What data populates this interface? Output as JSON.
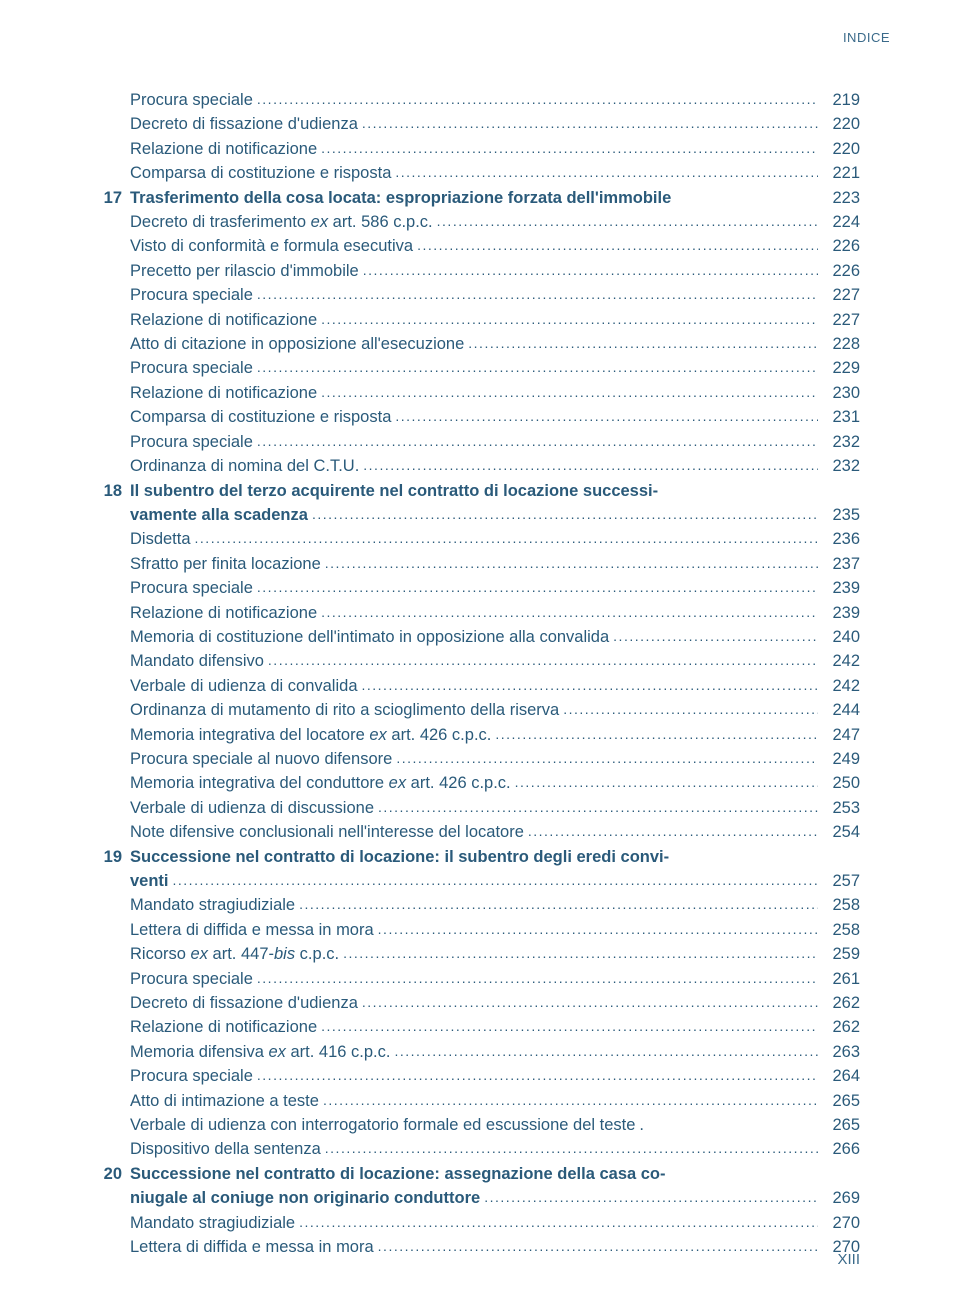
{
  "header": "INDICE",
  "footer": "XIII",
  "entries": [
    {
      "num": "",
      "label": "Procura speciale",
      "page": "219"
    },
    {
      "num": "",
      "label": "Decreto di fissazione d'udienza",
      "page": "220"
    },
    {
      "num": "",
      "label": "Relazione di notificazione",
      "page": "220"
    },
    {
      "num": "",
      "label": "Comparsa di costituzione e risposta",
      "page": "221"
    },
    {
      "num": "17",
      "bold": true,
      "label": "Trasferimento della cosa locata: espropriazione forzata dell'immobile",
      "page": "223",
      "noleader": true
    },
    {
      "num": "",
      "label_parts": [
        "Decreto di trasferimento ",
        {
          "ital": "ex"
        },
        " art. 586 c.p.c."
      ],
      "page": "224"
    },
    {
      "num": "",
      "label": "Visto di conformità e formula esecutiva",
      "page": "226"
    },
    {
      "num": "",
      "label": "Precetto per rilascio d'immobile",
      "page": "226"
    },
    {
      "num": "",
      "label": "Procura speciale",
      "page": "227"
    },
    {
      "num": "",
      "label": "Relazione di notificazione",
      "page": "227"
    },
    {
      "num": "",
      "label": "Atto di citazione in opposizione all'esecuzione",
      "page": "228"
    },
    {
      "num": "",
      "label": "Procura speciale",
      "page": "229"
    },
    {
      "num": "",
      "label": "Relazione di notificazione",
      "page": "230"
    },
    {
      "num": "",
      "label": "Comparsa di costituzione e risposta",
      "page": "231"
    },
    {
      "num": "",
      "label": "Procura speciale",
      "page": "232"
    },
    {
      "num": "",
      "label": "Ordinanza di nomina del C.T.U.",
      "page": "232"
    },
    {
      "num": "18",
      "bold": true,
      "label": "Il subentro del terzo acquirente nel contratto di locazione successi-",
      "nopage": true
    },
    {
      "num": "",
      "bold": true,
      "label": "vamente alla scadenza",
      "page": "235",
      "cont": true
    },
    {
      "num": "",
      "label": "Disdetta",
      "page": "236"
    },
    {
      "num": "",
      "label": "Sfratto per finita locazione",
      "page": "237"
    },
    {
      "num": "",
      "label": "Procura speciale",
      "page": "239"
    },
    {
      "num": "",
      "label": "Relazione di notificazione",
      "page": "239"
    },
    {
      "num": "",
      "label": "Memoria di costituzione dell'intimato in opposizione alla convalida",
      "page": "240"
    },
    {
      "num": "",
      "label": "Mandato difensivo",
      "page": "242"
    },
    {
      "num": "",
      "label": "Verbale di udienza di convalida",
      "page": "242"
    },
    {
      "num": "",
      "label": "Ordinanza di mutamento di rito a scioglimento della riserva",
      "page": "244"
    },
    {
      "num": "",
      "label_parts": [
        "Memoria integrativa del locatore ",
        {
          "ital": "ex"
        },
        " art. 426 c.p.c."
      ],
      "page": "247"
    },
    {
      "num": "",
      "label": "Procura speciale al nuovo difensore",
      "page": "249"
    },
    {
      "num": "",
      "label_parts": [
        "Memoria integrativa del conduttore ",
        {
          "ital": "ex"
        },
        " art. 426 c.p.c."
      ],
      "page": "250"
    },
    {
      "num": "",
      "label": "Verbale di udienza di discussione",
      "page": "253"
    },
    {
      "num": "",
      "label": "Note difensive conclusionali nell'interesse del locatore",
      "page": "254"
    },
    {
      "num": "19",
      "bold": true,
      "label": "Successione nel contratto di locazione: il subentro degli eredi convi-",
      "nopage": true
    },
    {
      "num": "",
      "bold": true,
      "label": "venti",
      "page": "257",
      "cont": true
    },
    {
      "num": "",
      "label": "Mandato stragiudiziale",
      "page": "258"
    },
    {
      "num": "",
      "label": "Lettera di diffida e messa in mora",
      "page": "258"
    },
    {
      "num": "",
      "label_parts": [
        "Ricorso ",
        {
          "ital": "ex"
        },
        " art. 447-",
        {
          "ital": "bis"
        },
        " c.p.c."
      ],
      "page": "259"
    },
    {
      "num": "",
      "label": "Procura speciale",
      "page": "261"
    },
    {
      "num": "",
      "label": "Decreto di fissazione d'udienza",
      "page": "262"
    },
    {
      "num": "",
      "label": "Relazione di notificazione",
      "page": "262"
    },
    {
      "num": "",
      "label_parts": [
        "Memoria difensiva ",
        {
          "ital": "ex"
        },
        " art. 416 c.p.c."
      ],
      "page": "263"
    },
    {
      "num": "",
      "label": "Procura speciale",
      "page": "264"
    },
    {
      "num": "",
      "label": "Atto di intimazione a teste",
      "page": "265"
    },
    {
      "num": "",
      "label": "Verbale di udienza con interrogatorio formale ed escussione del teste",
      "page": "265",
      "sep": " . "
    },
    {
      "num": "",
      "label": "Dispositivo della sentenza",
      "page": "266"
    },
    {
      "num": "20",
      "bold": true,
      "label": "Successione nel contratto di locazione: assegnazione della casa co-",
      "nopage": true
    },
    {
      "num": "",
      "bold": true,
      "label": "niugale al coniuge non originario conduttore",
      "page": "269",
      "cont": true
    },
    {
      "num": "",
      "label": "Mandato stragiudiziale",
      "page": "270"
    },
    {
      "num": "",
      "label": "Lettera di diffida e messa in mora",
      "page": "270"
    }
  ]
}
